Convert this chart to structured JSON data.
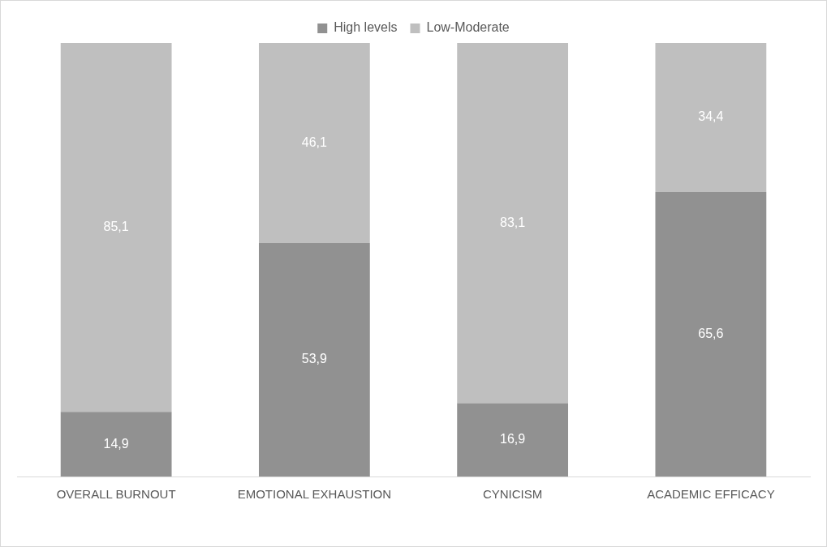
{
  "chart_data": {
    "type": "bar",
    "stacked": true,
    "legend": "top",
    "grid": false,
    "tick_labels": "x",
    "categories": [
      "OVERALL BURNOUT",
      "EMOTIONAL EXHAUSTION",
      "CYNICISM",
      "ACADEMIC EFFICACY"
    ],
    "series": [
      {
        "name": "High levels",
        "color": "#919191",
        "values": [
          14.9,
          53.9,
          16.9,
          65.6
        ],
        "value_labels": [
          "14,9",
          "53,9",
          "16,9",
          "65,6"
        ]
      },
      {
        "name": "Low-Moderate",
        "color": "#bfbfbf",
        "values": [
          85.1,
          46.1,
          83.1,
          34.4
        ],
        "value_labels": [
          "85,1",
          "46,1",
          "83,1",
          "34,4"
        ]
      }
    ]
  }
}
